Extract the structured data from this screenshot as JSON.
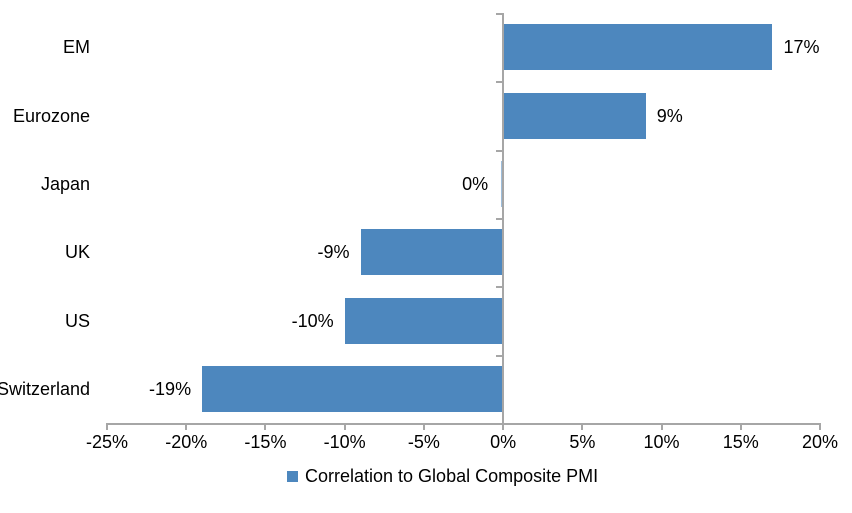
{
  "chart_data": {
    "type": "bar",
    "orientation": "horizontal",
    "title": "",
    "categories": [
      "EM",
      "Eurozone",
      "Japan",
      "UK",
      "US",
      "Switzerland"
    ],
    "values": [
      17,
      9,
      0,
      -9,
      -10,
      -19
    ],
    "value_labels": [
      "17%",
      "9%",
      "0%",
      "-9%",
      "-10%",
      "-19%"
    ],
    "xlim": [
      -25,
      20
    ],
    "x_ticks": [
      -25,
      -20,
      -15,
      -10,
      -5,
      0,
      5,
      10,
      15,
      20
    ],
    "x_tick_labels": [
      "-25%",
      "-20%",
      "-15%",
      "-10%",
      "-5%",
      "0%",
      "5%",
      "10%",
      "15%",
      "20%"
    ],
    "grid": false,
    "legend_position": "bottom-center",
    "legend_label": "Correlation to Global Composite PMI",
    "colors": {
      "bar": "#4D87BE",
      "axis": "#A6A6A6",
      "text": "#000000",
      "background": "#FFFFFF"
    }
  }
}
